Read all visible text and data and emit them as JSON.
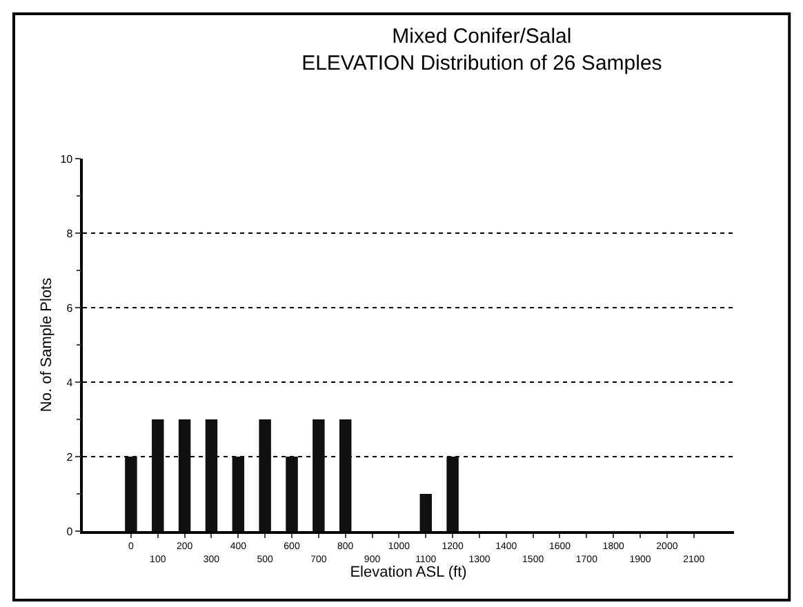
{
  "chart_data": {
    "type": "bar",
    "title": "Mixed Conifer/Salal",
    "subtitle": "ELEVATION Distribution of 26 Samples",
    "xlabel": "Elevation ASL (ft)",
    "ylabel": "No. of Sample Plots",
    "categories": [
      "0",
      "100",
      "200",
      "300",
      "400",
      "500",
      "600",
      "700",
      "800",
      "900",
      "1000",
      "1100",
      "1200",
      "1300",
      "1400",
      "1500",
      "1600",
      "1700",
      "1800",
      "1900",
      "2000",
      "2100"
    ],
    "values": [
      2,
      3,
      3,
      3,
      2,
      3,
      2,
      3,
      3,
      0,
      0,
      1,
      2,
      0,
      0,
      0,
      0,
      0,
      0,
      0,
      0,
      0
    ],
    "color": "#111111",
    "ylim": [
      0,
      10
    ],
    "yticks": [
      0,
      2,
      4,
      6,
      8,
      10
    ],
    "grid": "y"
  }
}
